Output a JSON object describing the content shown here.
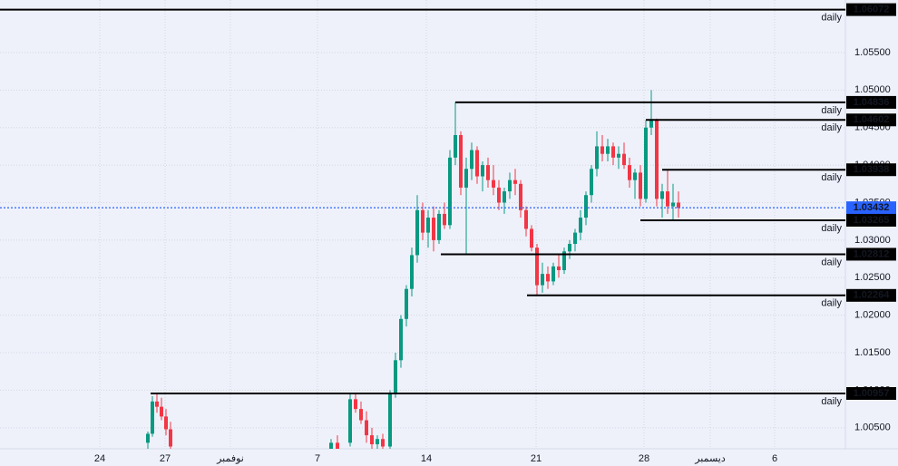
{
  "chart_data": {
    "type": "candlestick",
    "up_color": "#089981",
    "down_color": "#f23645",
    "xlim": [
      0,
      466
    ],
    "xticks": [
      {
        "value": 55,
        "label": "24"
      },
      {
        "value": 91,
        "label": "27"
      },
      {
        "value": 127,
        "label": "نوفمبر"
      },
      {
        "value": 175,
        "label": "7"
      },
      {
        "value": 235,
        "label": "14"
      },
      {
        "value": 295.5,
        "label": "21"
      },
      {
        "value": 355,
        "label": "28"
      },
      {
        "value": 391.5,
        "label": "ديسمبر"
      },
      {
        "value": 427,
        "label": "6"
      }
    ],
    "ylim": [
      1.0022,
      1.062
    ],
    "yticks": [
      {
        "value": 1.005,
        "label": "1.00500"
      },
      {
        "value": 1.01,
        "label": "1.01000"
      },
      {
        "value": 1.015,
        "label": "1.01500"
      },
      {
        "value": 1.02,
        "label": "1.02000"
      },
      {
        "value": 1.025,
        "label": "1.02500"
      },
      {
        "value": 1.03,
        "label": "1.03000"
      },
      {
        "value": 1.035,
        "label": "1.03500"
      },
      {
        "value": 1.04,
        "label": "1.04000"
      },
      {
        "value": 1.045,
        "label": "1.04500"
      },
      {
        "value": 1.05,
        "label": "1.05000"
      },
      {
        "value": 1.055,
        "label": "1.05500"
      }
    ],
    "grid": true,
    "x": [
      81.5,
      84,
      86.5,
      89,
      91.5,
      94,
      182.5,
      186,
      193,
      196,
      199,
      202,
      205,
      208,
      211,
      215,
      218,
      221,
      224,
      227,
      230,
      233,
      236,
      239,
      242,
      245,
      248,
      251,
      254,
      257,
      260,
      263,
      266,
      269,
      272,
      275,
      278,
      281,
      284,
      287,
      290,
      293,
      296,
      299,
      302,
      305,
      308,
      311,
      314,
      317,
      320,
      323,
      326,
      329,
      332,
      335,
      338,
      341,
      344,
      347,
      350,
      353,
      356,
      359,
      362,
      365,
      368,
      371,
      374
    ],
    "open": [
      1.003,
      1.0042,
      1.0085,
      1.0078,
      1.0065,
      1.0048,
      1.002,
      1.003,
      1.003,
      1.0088,
      1.0075,
      1.006,
      1.004,
      1.0028,
      1.0035,
      1.0025,
      1.0095,
      1.014,
      1.0195,
      1.0235,
      1.028,
      1.034,
      1.031,
      1.033,
      1.03,
      1.0335,
      1.032,
      1.041,
      1.044,
      1.037,
      1.0395,
      1.042,
      1.0385,
      1.04,
      1.038,
      1.037,
      1.035,
      1.0365,
      1.038,
      1.0375,
      1.034,
      1.0315,
      1.029,
      1.024,
      1.0255,
      1.0245,
      1.0265,
      1.026,
      1.0285,
      1.0295,
      1.031,
      1.033,
      1.036,
      1.0395,
      1.0425,
      1.0415,
      1.0425,
      1.041,
      1.0415,
      1.04,
      1.038,
      1.039,
      1.0355,
      1.045,
      1.046,
      1.0355,
      1.0365,
      1.0345,
      1.035
    ],
    "high": [
      1.0045,
      1.0092,
      1.0096,
      1.009,
      1.0075,
      1.0058,
      1.0035,
      1.004,
      1.0096,
      1.0095,
      1.0085,
      1.0072,
      1.005,
      1.004,
      1.0042,
      1.01,
      1.015,
      1.02,
      1.024,
      1.029,
      1.036,
      1.035,
      1.034,
      1.0345,
      1.034,
      1.035,
      1.042,
      1.0484,
      1.0445,
      1.041,
      1.043,
      1.0425,
      1.0405,
      1.041,
      1.04,
      1.038,
      1.037,
      1.039,
      1.0395,
      1.038,
      1.0345,
      1.032,
      1.0295,
      1.027,
      1.0265,
      1.027,
      1.028,
      1.029,
      1.03,
      1.0315,
      1.034,
      1.0365,
      1.04,
      1.0445,
      1.044,
      1.0435,
      1.043,
      1.0425,
      1.043,
      1.041,
      1.0395,
      1.04,
      1.046,
      1.05,
      1.0462,
      1.0375,
      1.0394,
      1.0375,
      1.0365
    ],
    "low": [
      1.002,
      1.0038,
      1.007,
      1.006,
      1.004,
      1.0015,
      1.001,
      1.0015,
      1.0025,
      1.007,
      1.0055,
      1.003,
      1.002,
      1.0018,
      1.0015,
      1.0018,
      1.009,
      1.013,
      1.0185,
      1.0225,
      1.027,
      1.03,
      1.029,
      1.0285,
      1.0295,
      1.0315,
      1.0315,
      1.04,
      1.036,
      1.0281,
      1.038,
      1.0375,
      1.0365,
      1.037,
      1.036,
      1.034,
      1.0335,
      1.0355,
      1.036,
      1.033,
      1.0305,
      1.0285,
      1.0226,
      1.023,
      1.0235,
      1.024,
      1.025,
      1.0255,
      1.0275,
      1.0285,
      1.03,
      1.032,
      1.035,
      1.0385,
      1.0405,
      1.0405,
      1.04,
      1.0395,
      1.0395,
      1.037,
      1.0355,
      1.0345,
      1.035,
      1.044,
      1.0345,
      1.033,
      1.0335,
      1.0327,
      1.033
    ],
    "close": [
      1.0042,
      1.0085,
      1.0078,
      1.0065,
      1.0048,
      1.0025,
      1.003,
      1.0022,
      1.0088,
      1.0075,
      1.006,
      1.004,
      1.0028,
      1.0035,
      1.0025,
      1.0095,
      1.014,
      1.0195,
      1.0235,
      1.028,
      1.034,
      1.031,
      1.033,
      1.03,
      1.0335,
      1.032,
      1.041,
      1.044,
      1.037,
      1.0395,
      1.042,
      1.0385,
      1.04,
      1.038,
      1.037,
      1.035,
      1.0365,
      1.038,
      1.0375,
      1.034,
      1.0315,
      1.029,
      1.024,
      1.0255,
      1.0245,
      1.0265,
      1.026,
      1.0285,
      1.0295,
      1.031,
      1.033,
      1.036,
      1.0395,
      1.0425,
      1.0415,
      1.0425,
      1.041,
      1.0415,
      1.04,
      1.038,
      1.039,
      1.0355,
      1.045,
      1.046,
      1.0355,
      1.0365,
      1.0345,
      1.035,
      1.0343
    ],
    "levels": [
      {
        "value": 1.06072,
        "label": "1.06072",
        "text": "daily",
        "x_start": 0
      },
      {
        "value": 1.04836,
        "label": "1.04836",
        "text": "daily",
        "x_start": 251
      },
      {
        "value": 1.04602,
        "label": "1.04602",
        "text": "daily",
        "x_start": 356
      },
      {
        "value": 1.03938,
        "label": "1.03938",
        "text": "daily",
        "x_start": 365
      },
      {
        "value": 1.03265,
        "label": "1.03265",
        "text": "daily",
        "x_start": 353
      },
      {
        "value": 1.02812,
        "label": "1.02812",
        "text": "daily",
        "x_start": 243
      },
      {
        "value": 1.02264,
        "label": "1.02264",
        "text": "daily",
        "x_start": 290.5
      },
      {
        "value": 1.00957,
        "label": "1.00957",
        "text": "daily",
        "x_start": 83
      }
    ],
    "level_color": "#000000",
    "current_price": {
      "value": 1.03432,
      "label": "1.03432",
      "color": "#2962ff"
    }
  }
}
